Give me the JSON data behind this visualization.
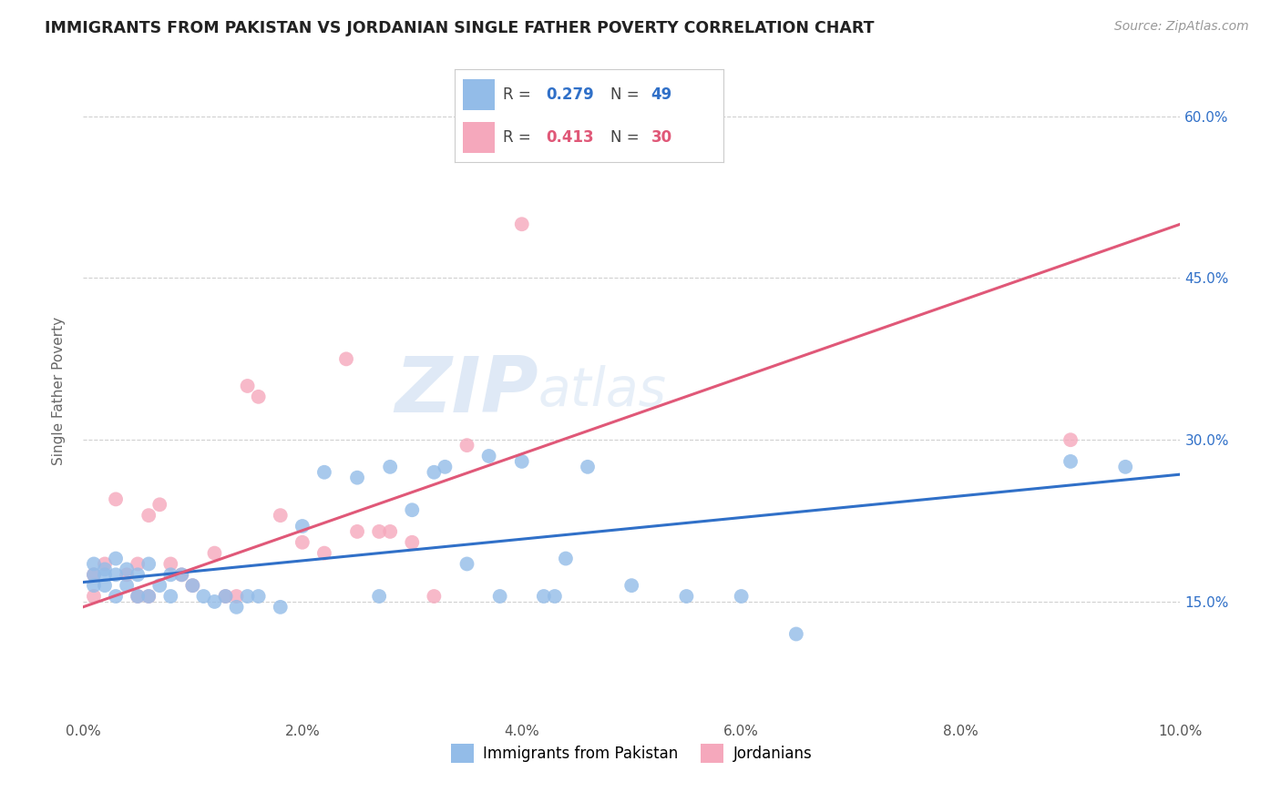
{
  "title": "IMMIGRANTS FROM PAKISTAN VS JORDANIAN SINGLE FATHER POVERTY CORRELATION CHART",
  "source": "Source: ZipAtlas.com",
  "ylabel": "Single Father Poverty",
  "x_tick_labels": [
    "0.0%",
    "2.0%",
    "4.0%",
    "6.0%",
    "8.0%",
    "10.0%"
  ],
  "x_tick_vals": [
    0.0,
    0.02,
    0.04,
    0.06,
    0.08,
    0.1
  ],
  "y_tick_labels_right": [
    "15.0%",
    "30.0%",
    "45.0%",
    "60.0%"
  ],
  "y_tick_vals": [
    0.15,
    0.3,
    0.45,
    0.6
  ],
  "xlim": [
    0.0,
    0.1
  ],
  "ylim": [
    0.04,
    0.65
  ],
  "legend_labels": [
    "Immigrants from Pakistan",
    "Jordanians"
  ],
  "r_pakistan": 0.279,
  "n_pakistan": 49,
  "r_jordanian": 0.413,
  "n_jordanian": 30,
  "color_pakistan": "#93bce8",
  "color_jordanian": "#f5a8bc",
  "line_color_pakistan": "#3070c8",
  "line_color_jordanian": "#e05878",
  "background_color": "#ffffff",
  "grid_color": "#d0d0d0",
  "watermark_zip": "ZIP",
  "watermark_atlas": "atlas",
  "pakistan_x": [
    0.001,
    0.001,
    0.001,
    0.002,
    0.002,
    0.002,
    0.003,
    0.003,
    0.003,
    0.004,
    0.004,
    0.005,
    0.005,
    0.006,
    0.006,
    0.007,
    0.008,
    0.008,
    0.009,
    0.01,
    0.011,
    0.012,
    0.013,
    0.014,
    0.015,
    0.016,
    0.018,
    0.02,
    0.022,
    0.025,
    0.027,
    0.028,
    0.03,
    0.032,
    0.033,
    0.035,
    0.037,
    0.038,
    0.04,
    0.042,
    0.043,
    0.044,
    0.046,
    0.05,
    0.055,
    0.06,
    0.065,
    0.09,
    0.095
  ],
  "pakistan_y": [
    0.185,
    0.175,
    0.165,
    0.18,
    0.175,
    0.165,
    0.19,
    0.175,
    0.155,
    0.18,
    0.165,
    0.175,
    0.155,
    0.185,
    0.155,
    0.165,
    0.175,
    0.155,
    0.175,
    0.165,
    0.155,
    0.15,
    0.155,
    0.145,
    0.155,
    0.155,
    0.145,
    0.22,
    0.27,
    0.265,
    0.155,
    0.275,
    0.235,
    0.27,
    0.275,
    0.185,
    0.285,
    0.155,
    0.28,
    0.155,
    0.155,
    0.19,
    0.275,
    0.165,
    0.155,
    0.155,
    0.12,
    0.28,
    0.275
  ],
  "jordanian_x": [
    0.001,
    0.001,
    0.002,
    0.003,
    0.004,
    0.005,
    0.005,
    0.006,
    0.006,
    0.007,
    0.008,
    0.009,
    0.01,
    0.012,
    0.013,
    0.014,
    0.015,
    0.016,
    0.018,
    0.02,
    0.022,
    0.024,
    0.025,
    0.027,
    0.028,
    0.03,
    0.032,
    0.035,
    0.04,
    0.09
  ],
  "jordanian_y": [
    0.175,
    0.155,
    0.185,
    0.245,
    0.175,
    0.185,
    0.155,
    0.23,
    0.155,
    0.24,
    0.185,
    0.175,
    0.165,
    0.195,
    0.155,
    0.155,
    0.35,
    0.34,
    0.23,
    0.205,
    0.195,
    0.375,
    0.215,
    0.215,
    0.215,
    0.205,
    0.155,
    0.295,
    0.5,
    0.3
  ],
  "pk_line_x": [
    0.0,
    0.1
  ],
  "pk_line_y": [
    0.168,
    0.268
  ],
  "jo_line_x": [
    0.0,
    0.1
  ],
  "jo_line_y": [
    0.145,
    0.5
  ]
}
